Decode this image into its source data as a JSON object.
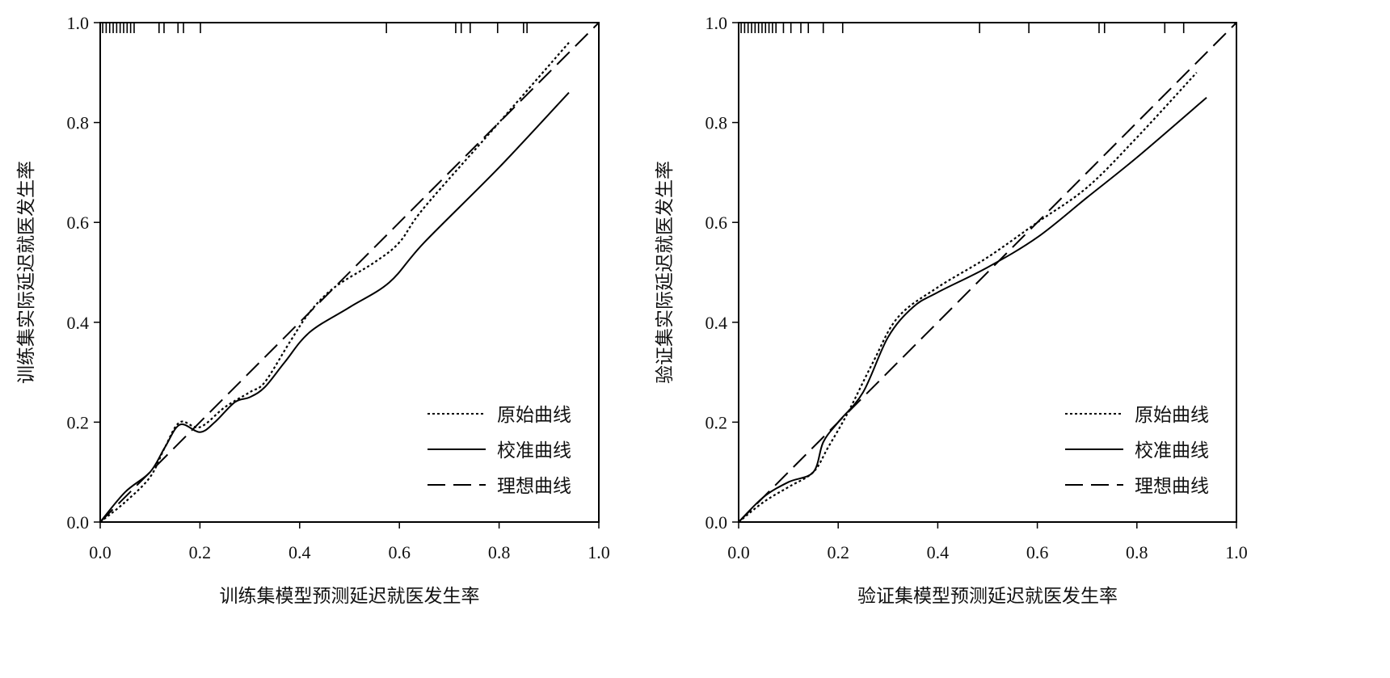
{
  "chart_data": [
    {
      "type": "line",
      "title": "",
      "xlabel": "训练集模型预测延迟就医发生率",
      "ylabel": "训练集实际延迟就医发生率",
      "xlim": [
        0,
        1
      ],
      "ylim": [
        0,
        1
      ],
      "xticks": [
        "0.0",
        "0.2",
        "0.4",
        "0.6",
        "0.8",
        "1.0"
      ],
      "yticks": [
        "0.0",
        "0.2",
        "0.4",
        "0.6",
        "0.8",
        "1.0"
      ],
      "grid": false,
      "legend_position": "bottom-right",
      "series": [
        {
          "name": "原始曲线",
          "style": "dotted",
          "x": [
            0,
            0.05,
            0.1,
            0.13,
            0.16,
            0.2,
            0.25,
            0.3,
            0.33,
            0.38,
            0.42,
            0.47,
            0.55,
            0.6,
            0.65,
            0.8,
            0.94
          ],
          "y": [
            0,
            0.04,
            0.09,
            0.15,
            0.2,
            0.19,
            0.23,
            0.26,
            0.28,
            0.36,
            0.42,
            0.47,
            0.52,
            0.56,
            0.63,
            0.8,
            0.96
          ]
        },
        {
          "name": "校准曲线",
          "style": "solid",
          "x": [
            0,
            0.05,
            0.1,
            0.13,
            0.16,
            0.2,
            0.23,
            0.27,
            0.3,
            0.33,
            0.37,
            0.42,
            0.5,
            0.58,
            0.65,
            0.8,
            0.94
          ],
          "y": [
            0,
            0.06,
            0.1,
            0.15,
            0.195,
            0.18,
            0.2,
            0.24,
            0.25,
            0.27,
            0.32,
            0.38,
            0.43,
            0.48,
            0.56,
            0.71,
            0.86
          ]
        },
        {
          "name": "理想曲线",
          "style": "dashed",
          "x": [
            0,
            1
          ],
          "y": [
            0,
            1
          ]
        }
      ],
      "rug": [
        0.005,
        0.012,
        0.019,
        0.026,
        0.033,
        0.04,
        0.047,
        0.054,
        0.061,
        0.068,
        0.118,
        0.128,
        0.156,
        0.167,
        0.201,
        0.574,
        0.713,
        0.724,
        0.742,
        0.797,
        0.849,
        0.856
      ]
    },
    {
      "type": "line",
      "title": "",
      "xlabel": "验证集模型预测延迟就医发生率",
      "ylabel": "验证集实际延迟就医发生率",
      "xlim": [
        0,
        1
      ],
      "ylim": [
        0,
        1
      ],
      "xticks": [
        "0.0",
        "0.2",
        "0.4",
        "0.6",
        "0.8",
        "1.0"
      ],
      "yticks": [
        "0.0",
        "0.2",
        "0.4",
        "0.6",
        "0.8",
        "1.0"
      ],
      "grid": false,
      "legend_position": "bottom-right",
      "series": [
        {
          "name": "原始曲线",
          "style": "dotted",
          "x": [
            0,
            0.05,
            0.1,
            0.15,
            0.18,
            0.22,
            0.27,
            0.32,
            0.4,
            0.5,
            0.6,
            0.7,
            0.8,
            0.92
          ],
          "y": [
            0,
            0.04,
            0.07,
            0.1,
            0.15,
            0.22,
            0.32,
            0.41,
            0.47,
            0.53,
            0.6,
            0.67,
            0.77,
            0.9
          ]
        },
        {
          "name": "校准曲线",
          "style": "solid",
          "x": [
            0,
            0.05,
            0.1,
            0.15,
            0.17,
            0.2,
            0.25,
            0.3,
            0.35,
            0.4,
            0.5,
            0.6,
            0.7,
            0.8,
            0.94
          ],
          "y": [
            0,
            0.05,
            0.08,
            0.1,
            0.16,
            0.2,
            0.26,
            0.37,
            0.43,
            0.46,
            0.51,
            0.57,
            0.65,
            0.73,
            0.85
          ]
        },
        {
          "name": "理想曲线",
          "style": "dashed",
          "x": [
            0,
            1
          ],
          "y": [
            0,
            1
          ]
        }
      ],
      "rug": [
        0.005,
        0.012,
        0.019,
        0.026,
        0.033,
        0.04,
        0.047,
        0.054,
        0.061,
        0.068,
        0.075,
        0.09,
        0.105,
        0.125,
        0.14,
        0.17,
        0.209,
        0.484,
        0.583,
        0.724,
        0.735,
        0.856,
        0.894
      ]
    }
  ]
}
